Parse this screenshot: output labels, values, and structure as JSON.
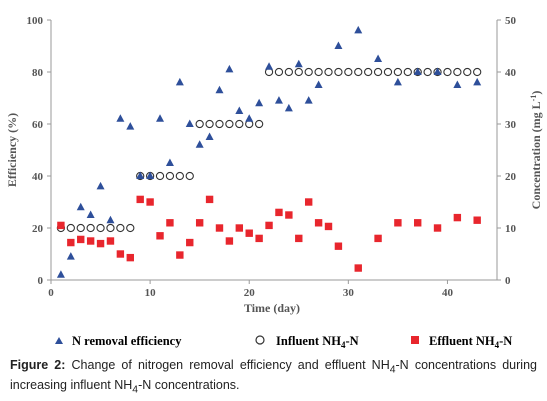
{
  "chart_data": {
    "type": "scatter",
    "xlabel": "Time (day)",
    "ylabel_left": "Efficiency (%)",
    "ylabel_right_main": "Concentration (mg L",
    "ylabel_right_sup": "-1",
    "ylabel_right_close": ")",
    "xlim": [
      0,
      45
    ],
    "x_ticks": [
      0,
      10,
      20,
      30,
      40
    ],
    "ylim_left": [
      0,
      100
    ],
    "y_ticks_left": [
      0,
      20,
      40,
      60,
      80,
      100
    ],
    "ylim_right": [
      0,
      50
    ],
    "y_ticks_right": [
      0,
      10,
      20,
      30,
      40,
      50
    ],
    "grid": false,
    "legend_position": "bottom",
    "series": [
      {
        "name": "N removal efficiency",
        "axis": "left",
        "marker": "triangle",
        "color": "#2e4f9a",
        "points": [
          [
            1,
            2
          ],
          [
            2,
            9
          ],
          [
            3,
            28
          ],
          [
            4,
            25
          ],
          [
            5,
            36
          ],
          [
            6,
            23
          ],
          [
            7,
            62
          ],
          [
            8,
            59
          ],
          [
            9,
            40
          ],
          [
            10,
            40
          ],
          [
            11,
            62
          ],
          [
            12,
            45
          ],
          [
            13,
            76
          ],
          [
            14,
            60
          ],
          [
            15,
            52
          ],
          [
            16,
            55
          ],
          [
            17,
            73
          ],
          [
            18,
            81
          ],
          [
            19,
            65
          ],
          [
            20,
            62
          ],
          [
            21,
            68
          ],
          [
            22,
            82
          ],
          [
            23,
            69
          ],
          [
            24,
            66
          ],
          [
            25,
            83
          ],
          [
            26,
            69
          ],
          [
            27,
            75
          ],
          [
            29,
            90
          ],
          [
            31,
            96
          ],
          [
            33,
            85
          ],
          [
            35,
            76
          ],
          [
            37,
            80
          ],
          [
            39,
            80
          ],
          [
            41,
            75
          ],
          [
            43,
            76
          ]
        ]
      },
      {
        "name_main": "Influent NH",
        "name_sub": "4",
        "name_tail": "-N",
        "axis": "right",
        "marker": "circle-open",
        "color": "#333333",
        "points": [
          [
            1,
            10
          ],
          [
            2,
            10
          ],
          [
            3,
            10
          ],
          [
            4,
            10
          ],
          [
            5,
            10
          ],
          [
            6,
            10
          ],
          [
            7,
            10
          ],
          [
            8,
            10
          ],
          [
            9,
            20
          ],
          [
            10,
            20
          ],
          [
            11,
            20
          ],
          [
            12,
            20
          ],
          [
            13,
            20
          ],
          [
            14,
            20
          ],
          [
            15,
            30
          ],
          [
            16,
            30
          ],
          [
            17,
            30
          ],
          [
            18,
            30
          ],
          [
            19,
            30
          ],
          [
            20,
            30
          ],
          [
            21,
            30
          ],
          [
            22,
            40
          ],
          [
            23,
            40
          ],
          [
            24,
            40
          ],
          [
            25,
            40
          ],
          [
            26,
            40
          ],
          [
            27,
            40
          ],
          [
            28,
            40
          ],
          [
            29,
            40
          ],
          [
            30,
            40
          ],
          [
            31,
            40
          ],
          [
            32,
            40
          ],
          [
            33,
            40
          ],
          [
            34,
            40
          ],
          [
            35,
            40
          ],
          [
            36,
            40
          ],
          [
            37,
            40
          ],
          [
            38,
            40
          ],
          [
            39,
            40
          ],
          [
            40,
            40
          ],
          [
            41,
            40
          ],
          [
            42,
            40
          ],
          [
            43,
            40
          ]
        ]
      },
      {
        "name_main": "Effluent NH",
        "name_sub": "4",
        "name_tail": "-N",
        "axis": "right",
        "marker": "square",
        "color": "#e8262d",
        "points": [
          [
            1,
            10.5
          ],
          [
            2,
            7.2
          ],
          [
            3,
            7.8
          ],
          [
            4,
            7.5
          ],
          [
            5,
            7
          ],
          [
            6,
            7.5
          ],
          [
            7,
            5
          ],
          [
            8,
            4.3
          ],
          [
            9,
            15.5
          ],
          [
            10,
            15
          ],
          [
            11,
            8.5
          ],
          [
            12,
            11
          ],
          [
            13,
            4.8
          ],
          [
            14,
            7.2
          ],
          [
            15,
            11
          ],
          [
            16,
            15.5
          ],
          [
            17,
            10
          ],
          [
            18,
            7.5
          ],
          [
            19,
            10
          ],
          [
            20,
            9
          ],
          [
            21,
            8
          ],
          [
            22,
            10.5
          ],
          [
            23,
            13
          ],
          [
            24,
            12.5
          ],
          [
            25,
            8
          ],
          [
            26,
            15
          ],
          [
            27,
            11
          ],
          [
            28,
            10.3
          ],
          [
            29,
            6.5
          ],
          [
            31,
            2.3
          ],
          [
            33,
            8
          ],
          [
            35,
            11
          ],
          [
            37,
            11
          ],
          [
            39,
            10
          ],
          [
            41,
            12
          ],
          [
            43,
            11.5
          ]
        ]
      }
    ]
  },
  "caption": {
    "label": "Figure 2:",
    "text_1": " Change of nitrogen removal efficiency and effluent NH",
    "sub_1": "4",
    "text_2": "-N concentrations during increasing influent NH",
    "sub_2": "4",
    "text_3": "-N concentrations."
  }
}
